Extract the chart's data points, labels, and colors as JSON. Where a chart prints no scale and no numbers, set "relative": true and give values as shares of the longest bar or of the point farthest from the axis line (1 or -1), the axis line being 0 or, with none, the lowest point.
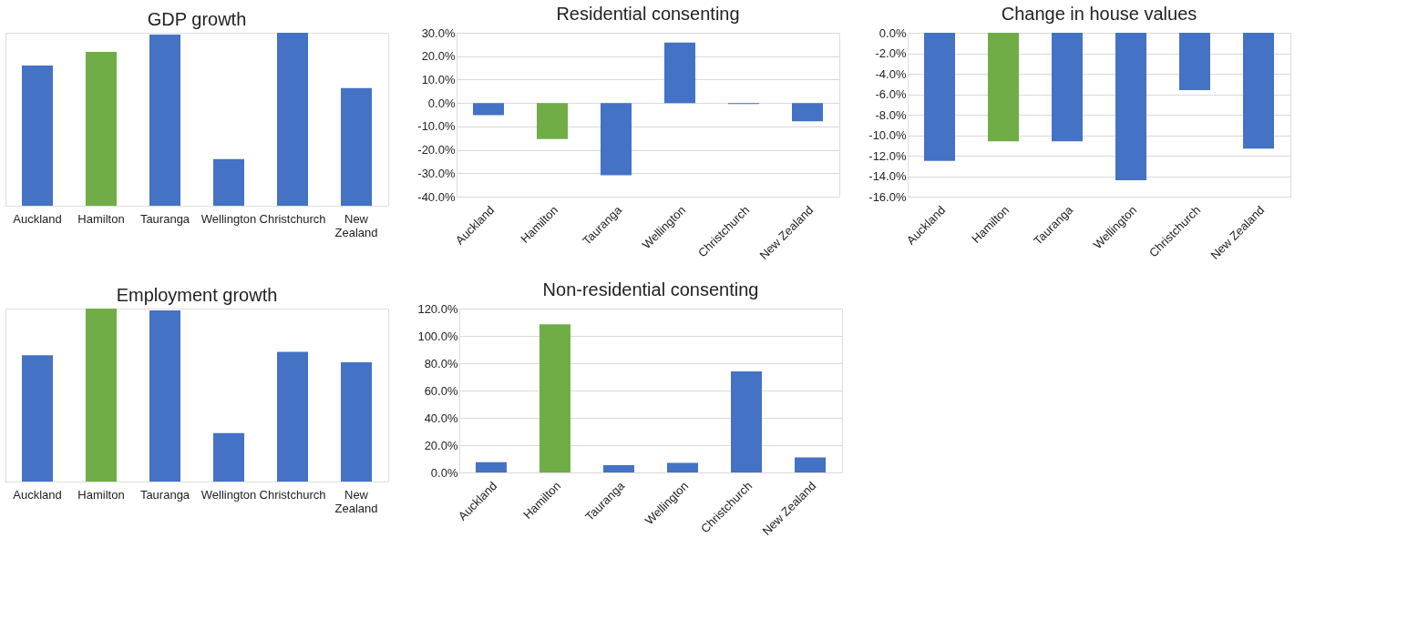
{
  "chart_data": [
    {
      "type": "bar",
      "title": "GDP growth",
      "relative": true,
      "categories": [
        "Auckland",
        "Hamilton",
        "Tauranga",
        "Wellington",
        "Christchurch",
        "New Zealand"
      ],
      "values": [
        0.81,
        0.89,
        0.99,
        0.27,
        1,
        0.68
      ],
      "colors": [
        "#4472c4",
        "#70ad47",
        "#4472c4",
        "#4472c4",
        "#4472c4",
        "#4472c4"
      ]
    },
    {
      "type": "bar",
      "title": "Residential consenting",
      "categories": [
        "Auckland",
        "Hamilton",
        "Tauranga",
        "Wellington",
        "Christchurch",
        "New Zealand"
      ],
      "values": [
        -5.2,
        -15.4,
        -30.9,
        25.8,
        -0.4,
        -7.8
      ],
      "colors": [
        "#4472c4",
        "#70ad47",
        "#4472c4",
        "#4472c4",
        "#4472c4",
        "#4472c4"
      ],
      "ylim": [
        -40,
        30
      ],
      "yticks": [
        {
          "value": -40,
          "label": "-40.0%"
        },
        {
          "value": -30,
          "label": "-30.0%"
        },
        {
          "value": -20,
          "label": "-20.0%"
        },
        {
          "value": -10,
          "label": "-10.0%"
        },
        {
          "value": 0,
          "label": "0.0%"
        },
        {
          "value": 10,
          "label": "10.0%"
        },
        {
          "value": 20,
          "label": "20.0%"
        },
        {
          "value": 30,
          "label": "30.0%"
        }
      ],
      "grid": "y"
    },
    {
      "type": "bar",
      "title": "Change in house values",
      "categories": [
        "Auckland",
        "Hamilton",
        "Tauranga",
        "Wellington",
        "Christchurch",
        "New Zealand"
      ],
      "values": [
        -12.5,
        -10.6,
        -10.6,
        -14.4,
        -5.6,
        -11.3
      ],
      "colors": [
        "#4472c4",
        "#70ad47",
        "#4472c4",
        "#4472c4",
        "#4472c4",
        "#4472c4"
      ],
      "ylim": [
        -16,
        0
      ],
      "yticks": [
        {
          "value": -16,
          "label": "-16.0%"
        },
        {
          "value": -14,
          "label": "-14.0%"
        },
        {
          "value": -12,
          "label": "-12.0%"
        },
        {
          "value": -10,
          "label": "-10.0%"
        },
        {
          "value": -8,
          "label": "-8.0%"
        },
        {
          "value": -6,
          "label": "-6.0%"
        },
        {
          "value": -4,
          "label": "-4.0%"
        },
        {
          "value": -2,
          "label": "-2.0%"
        },
        {
          "value": 0,
          "label": "0.0%"
        }
      ],
      "grid": "y"
    },
    {
      "type": "bar",
      "title": "Employment growth",
      "relative": true,
      "categories": [
        "Auckland",
        "Hamilton",
        "Tauranga",
        "Wellington",
        "Christchurch",
        "New Zealand"
      ],
      "values": [
        0.73,
        1,
        0.99,
        0.28,
        0.75,
        0.69
      ],
      "colors": [
        "#4472c4",
        "#70ad47",
        "#4472c4",
        "#4472c4",
        "#4472c4",
        "#4472c4"
      ]
    },
    {
      "type": "bar",
      "title": "Non-residential consenting",
      "categories": [
        "Auckland",
        "Hamilton",
        "Tauranga",
        "Wellington",
        "Christchurch",
        "New Zealand"
      ],
      "values": [
        7.5,
        108.5,
        5.3,
        7,
        74,
        11
      ],
      "colors": [
        "#4472c4",
        "#70ad47",
        "#4472c4",
        "#4472c4",
        "#4472c4",
        "#4472c4"
      ],
      "ylim": [
        0,
        120
      ],
      "yticks": [
        {
          "value": 0,
          "label": "0.0%"
        },
        {
          "value": 20,
          "label": "20.0%"
        },
        {
          "value": 40,
          "label": "40.0%"
        },
        {
          "value": 60,
          "label": "60.0%"
        },
        {
          "value": 80,
          "label": "80.0%"
        },
        {
          "value": 100,
          "label": "100.0%"
        },
        {
          "value": 120,
          "label": "120.0%"
        }
      ],
      "grid": "y"
    }
  ]
}
